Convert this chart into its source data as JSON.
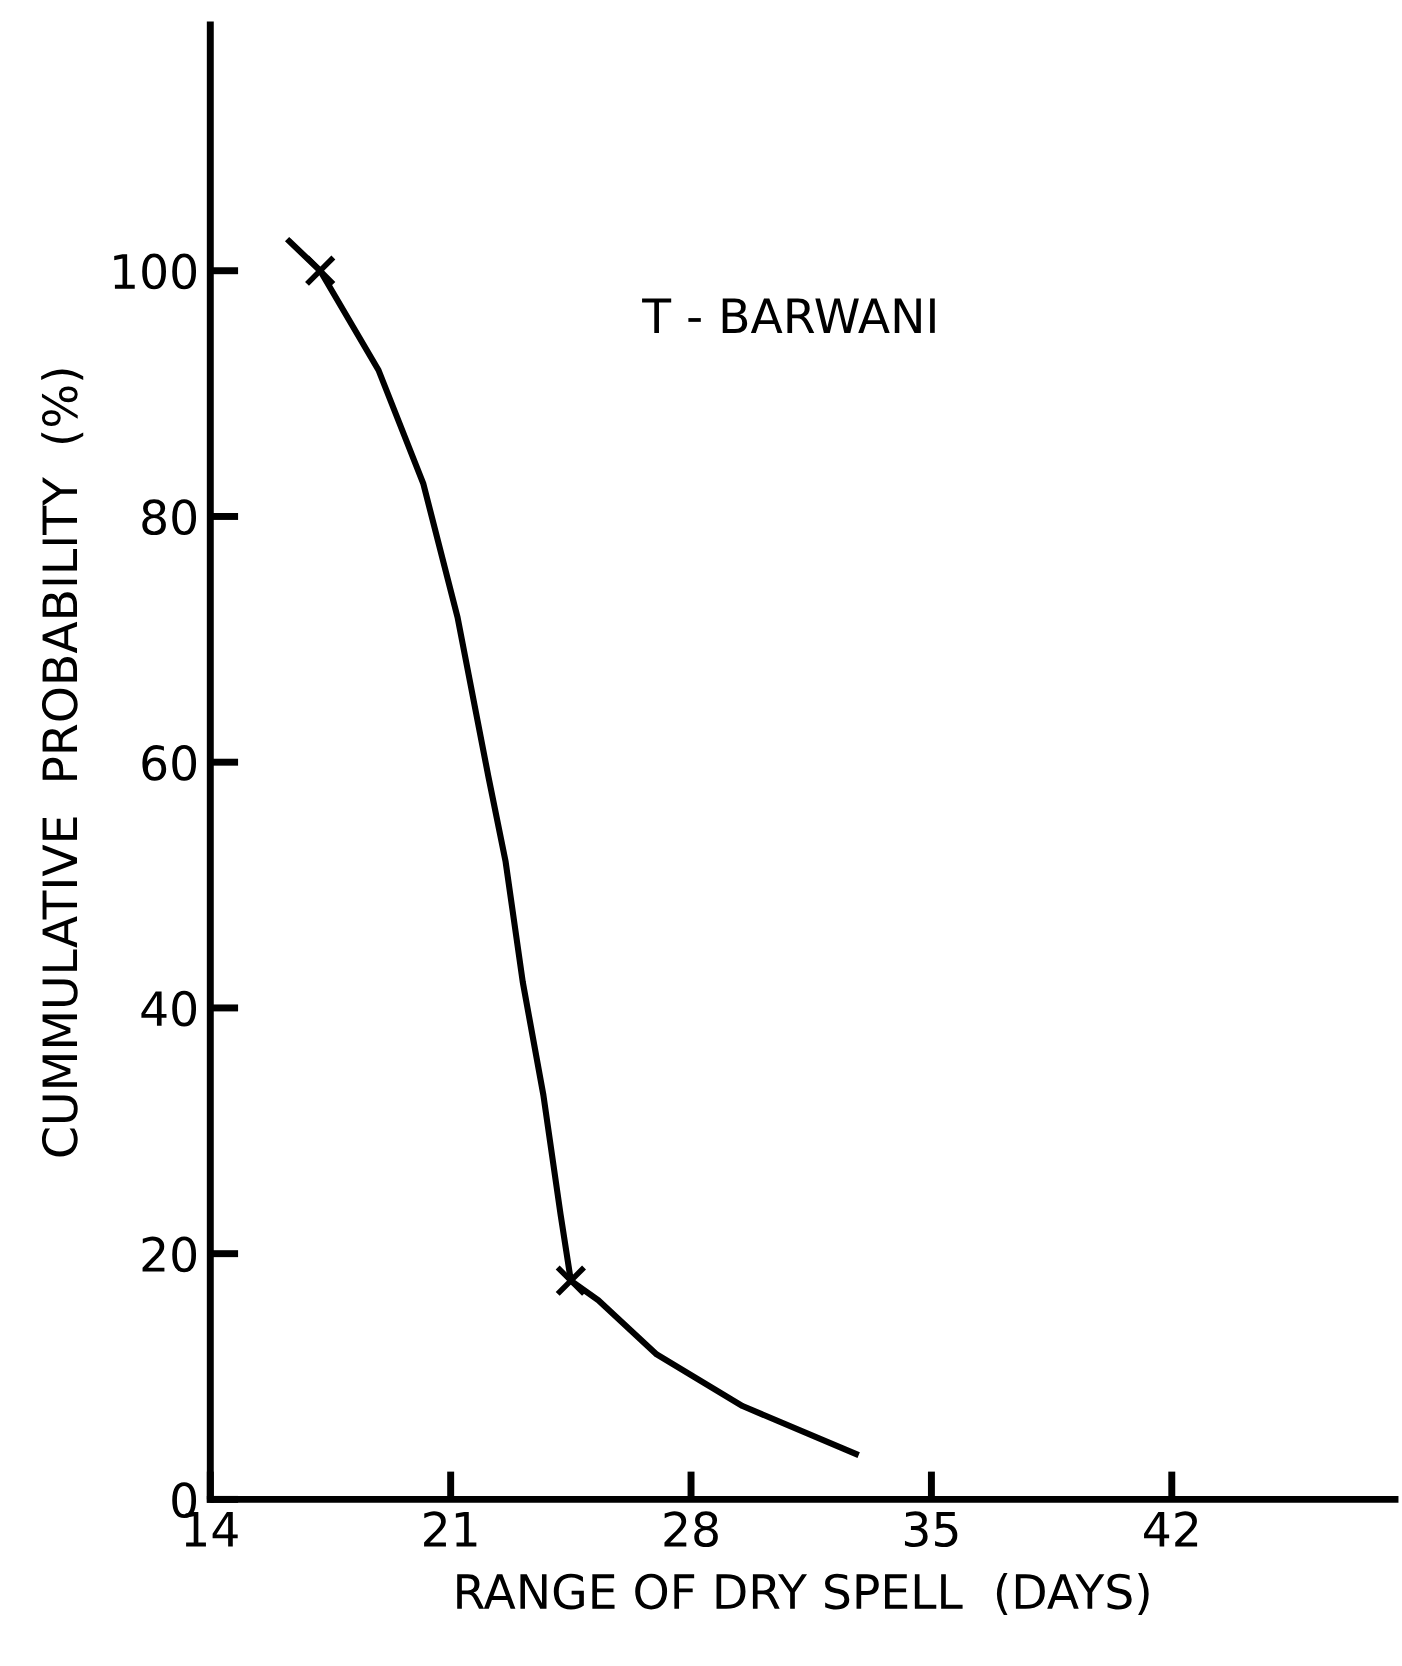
{
  "chart_data": {
    "type": "line",
    "xlabel": "RANGE OF DRY SPELL  (DAYS)",
    "ylabel": "CUMMULATIVE  PROBABILITY  (%)",
    "annotations": [
      "T - BARWANI"
    ],
    "series": [
      {
        "color": "#000000",
        "marker": "none",
        "x": [
          16.3,
          17.2,
          18.9,
          20.2,
          21.2,
          22.1,
          22.6,
          23.1,
          23.7,
          24.2,
          24.5,
          25.3,
          27.0,
          29.5,
          32.8
        ],
        "values": [
          102.4,
          100,
          91.9,
          82.7,
          71.8,
          58.8,
          51.9,
          42.1,
          32.9,
          23.2,
          17.8,
          16.2,
          11.8,
          7.6,
          3.7
        ]
      },
      {
        "type": "scatter",
        "color": "#000000",
        "marker": "cross",
        "x": [
          17.2,
          24.5
        ],
        "values": [
          100,
          17.8
        ]
      }
    ],
    "xlim": [
      14,
      48.5
    ],
    "ylim": [
      0,
      120
    ],
    "xticks": [
      14,
      21,
      28,
      35,
      42
    ],
    "yticks": [
      0,
      20,
      40,
      60,
      80,
      100
    ],
    "grid": false
  }
}
